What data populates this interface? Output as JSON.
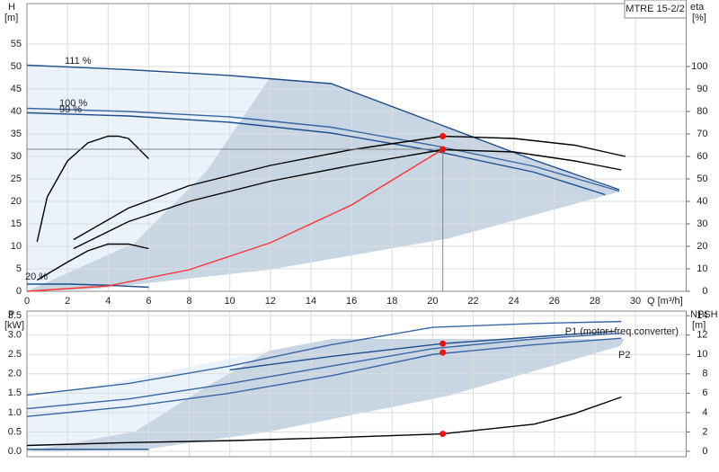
{
  "chart_data": [
    {
      "type": "line",
      "title": "MTRE 15-2/2",
      "ylabel": "H",
      "yunit": "[m]",
      "y2label": "eta",
      "y2unit": "[%]",
      "xlabel": "Q [m³/h]",
      "xlim": [
        0,
        32.5
      ],
      "xticks": [
        0,
        2,
        4,
        6,
        8,
        10,
        12,
        14,
        16,
        18,
        20,
        22,
        24,
        26,
        28,
        30
      ],
      "ylim": [
        0,
        64
      ],
      "yticks": [
        0,
        5,
        10,
        15,
        20,
        25,
        30,
        35,
        40,
        45,
        50,
        55
      ],
      "y2lim": [
        0,
        128
      ],
      "y2ticks": [
        0,
        10,
        20,
        30,
        40,
        50,
        60,
        70,
        80,
        90,
        100
      ],
      "grid": true,
      "series": [
        {
          "name": "111 %",
          "type": "line",
          "color": "#1f4e8c",
          "x": [
            0,
            5,
            10,
            15,
            20,
            25,
            29.2
          ],
          "values": [
            50.3,
            49.3,
            48,
            46.2,
            37.7,
            29.2,
            22.6
          ]
        },
        {
          "name": "100 %",
          "type": "line",
          "color": "#3a66a3",
          "x": [
            0,
            5,
            10,
            15,
            20,
            25,
            29.2
          ],
          "values": [
            40.7,
            40,
            38.8,
            36.5,
            32.5,
            27.8,
            22.3
          ]
        },
        {
          "name": "99 %",
          "type": "line",
          "color": "#1f4e8c",
          "x": [
            0,
            5,
            10,
            15,
            20,
            25,
            28.5
          ],
          "values": [
            39.7,
            39,
            37.6,
            35.2,
            31.3,
            26.5,
            21.5
          ]
        },
        {
          "name": "20 %",
          "type": "line",
          "color": "#1f4e8c",
          "x": [
            0,
            2,
            4,
            6
          ],
          "values": [
            1.6,
            1.6,
            1.35,
            0.9
          ]
        },
        {
          "type": "line",
          "axis": "y2",
          "color": "#000000",
          "x": [
            2.3,
            5,
            8,
            12,
            16,
            20.5,
            24,
            27,
            29.5
          ],
          "values": [
            23,
            37,
            47,
            56,
            63,
            69,
            68,
            65,
            60
          ]
        },
        {
          "type": "line",
          "axis": "y2",
          "color": "#000000",
          "x": [
            2.3,
            5,
            8,
            12,
            16,
            20.5,
            24,
            27,
            29.3
          ],
          "values": [
            19,
            31,
            40,
            49,
            56,
            63,
            62,
            58,
            54
          ]
        },
        {
          "type": "line",
          "axis": "y2",
          "color": "#000000",
          "x": [
            0.5,
            1,
            2,
            3,
            4,
            4.5,
            5,
            6
          ],
          "values": [
            22,
            42,
            58,
            66,
            69,
            69,
            68,
            59
          ]
        },
        {
          "type": "line",
          "axis": "y2",
          "color": "#000000",
          "x": [
            0.5,
            2,
            3,
            4,
            5,
            6
          ],
          "values": [
            5,
            13,
            18,
            21,
            21,
            19
          ]
        },
        {
          "type": "line",
          "color": "#ff3333",
          "x": [
            0,
            4,
            8,
            12,
            16,
            20.5
          ],
          "values": [
            0,
            1.2,
            4.8,
            10.8,
            19.2,
            31.6
          ]
        },
        {
          "type": "scatter",
          "color": "#ee1111",
          "x": [
            20.5
          ],
          "values": [
            31.6
          ]
        },
        {
          "type": "scatter",
          "axis": "y2",
          "color": "#ee1111",
          "x": [
            20.5
          ],
          "values": [
            69
          ]
        }
      ]
    },
    {
      "type": "line",
      "ylabel": "P",
      "yunit": "[kW]",
      "y2label": "NPSH",
      "y2unit": "[m]",
      "xlim": [
        0,
        32.5
      ],
      "ylim": [
        -0.14,
        3.62
      ],
      "yticks": [
        {
          "value": 0,
          "label": "0.0"
        },
        0.5,
        {
          "value": 1,
          "label": "1.0"
        },
        1.5,
        {
          "value": 2,
          "label": "2.0"
        },
        2.5,
        {
          "value": 3,
          "label": "3.0"
        },
        3.5
      ],
      "y2lim": [
        -0.56,
        14.48
      ],
      "y2ticks": [
        0,
        2,
        4,
        6,
        8,
        10,
        12,
        14
      ],
      "grid": true,
      "series": [
        {
          "name": "P1 (motor+freq.converter)",
          "type": "line",
          "color": "#1f4e8c",
          "x": [
            10,
            15,
            20.5,
            25,
            29
          ],
          "values": [
            2.1,
            2.45,
            2.78,
            2.95,
            3.1
          ]
        },
        {
          "type": "line",
          "color": "#3a66a3",
          "x": [
            0,
            5,
            10,
            15,
            20,
            25,
            29.3
          ],
          "values": [
            1.45,
            1.75,
            2.2,
            2.75,
            3.2,
            3.3,
            3.35
          ]
        },
        {
          "type": "line",
          "color": "#3a66a3",
          "x": [
            0,
            5,
            10,
            15,
            20,
            25,
            29.3
          ],
          "values": [
            1.1,
            1.35,
            1.75,
            2.2,
            2.65,
            2.9,
            3.05
          ]
        },
        {
          "name": "P2",
          "type": "line",
          "color": "#3a66a3",
          "x": [
            0,
            5,
            10,
            15,
            20,
            25,
            29.3
          ],
          "values": [
            0.9,
            1.15,
            1.5,
            1.95,
            2.5,
            2.75,
            2.92
          ]
        },
        {
          "type": "line",
          "axis": "y2",
          "color": "#000000",
          "x": [
            0,
            5,
            10,
            15,
            20.5,
            25,
            27,
            29.3
          ],
          "values": [
            0.6,
            0.9,
            1.1,
            1.4,
            1.8,
            2.8,
            3.9,
            5.6
          ]
        },
        {
          "type": "line",
          "color": "#1f4e8c",
          "x": [
            0,
            6
          ],
          "values": [
            0.05,
            0.05
          ]
        },
        {
          "type": "scatter",
          "color": "#ee1111",
          "x": [
            20.5
          ],
          "values": [
            2.78
          ]
        },
        {
          "type": "scatter",
          "color": "#ee1111",
          "x": [
            20.5
          ],
          "values": [
            2.55
          ]
        },
        {
          "type": "scatter",
          "axis": "y2",
          "color": "#ee1111",
          "x": [
            20.5
          ],
          "values": [
            1.8
          ]
        }
      ]
    }
  ]
}
